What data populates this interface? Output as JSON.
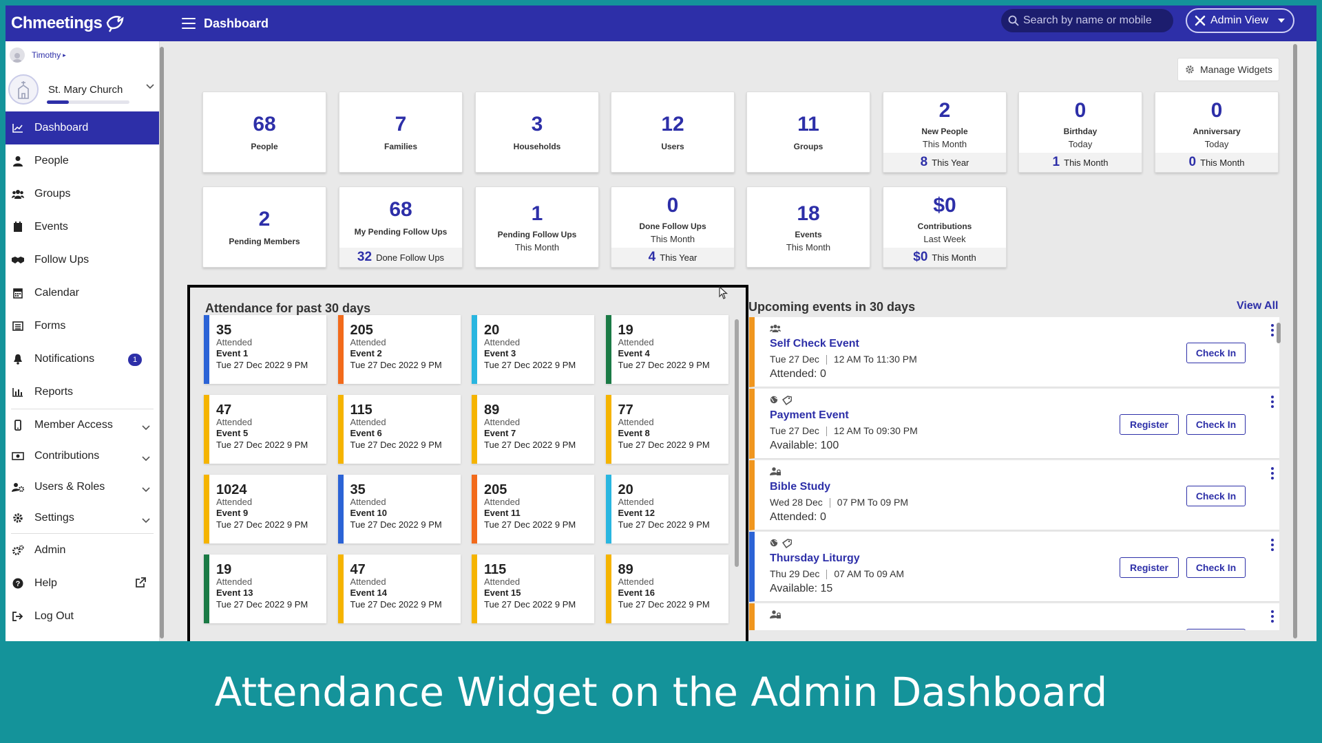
{
  "app": {
    "logo_text": "Chmeetings",
    "page_title": "Dashboard"
  },
  "search": {
    "placeholder": "Search by name or mobile"
  },
  "admin_view_label": "Admin View",
  "user_name": "Timothy",
  "church_name": "St. Mary Church",
  "sidebar": {
    "items": [
      {
        "label": "Dashboard",
        "icon": "chart-icon"
      },
      {
        "label": "People",
        "icon": "person-icon"
      },
      {
        "label": "Groups",
        "icon": "groups-icon"
      },
      {
        "label": "Events",
        "icon": "calendar-page-icon"
      },
      {
        "label": "Follow Ups",
        "icon": "handshake-icon"
      },
      {
        "label": "Calendar",
        "icon": "calendar-icon"
      },
      {
        "label": "Forms",
        "icon": "forms-icon"
      },
      {
        "label": "Notifications",
        "icon": "bell-icon",
        "badge": "1"
      },
      {
        "label": "Reports",
        "icon": "bar-chart-icon"
      },
      {
        "label": "Member Access",
        "icon": "mobile-icon"
      },
      {
        "label": "Contributions",
        "icon": "money-icon"
      },
      {
        "label": "Users & Roles",
        "icon": "users-cog-icon"
      },
      {
        "label": "Settings",
        "icon": "gear-icon"
      },
      {
        "label": "Admin",
        "icon": "cogs-icon"
      },
      {
        "label": "Help",
        "icon": "help-icon"
      },
      {
        "label": "Log Out",
        "icon": "logout-icon"
      }
    ]
  },
  "manage_widgets_label": "Manage Widgets",
  "stats_row1": [
    {
      "value": "68",
      "label": "People"
    },
    {
      "value": "7",
      "label": "Families"
    },
    {
      "value": "3",
      "label": "Households"
    },
    {
      "value": "12",
      "label": "Users"
    },
    {
      "value": "11",
      "label": "Groups"
    },
    {
      "value": "2",
      "label": "New People",
      "sub": "This Month",
      "foot_value": "8",
      "foot_label": "This Year"
    },
    {
      "value": "0",
      "label": "Birthday",
      "sub": "Today",
      "foot_value": "1",
      "foot_label": "This Month"
    },
    {
      "value": "0",
      "label": "Anniversary",
      "sub": "Today",
      "foot_value": "0",
      "foot_label": "This Month"
    }
  ],
  "stats_row2": [
    {
      "value": "2",
      "label": "Pending Members"
    },
    {
      "value": "68",
      "label": "My Pending Follow Ups",
      "foot_value": "32",
      "foot_label": "Done Follow Ups"
    },
    {
      "value": "1",
      "label": "Pending Follow Ups",
      "sub": "This Month"
    },
    {
      "value": "0",
      "label": "Done Follow Ups",
      "sub": "This Month",
      "foot_value": "4",
      "foot_label": "This Year"
    },
    {
      "value": "18",
      "label": "Events",
      "sub": "This Month"
    },
    {
      "value": "$0",
      "label": "Contributions",
      "sub": "Last Week",
      "foot_value": "$0",
      "foot_label": "This Month"
    }
  ],
  "attendance": {
    "title": "Attendance for past 30 days",
    "attended_label": "Attended",
    "cards": [
      {
        "count": "35",
        "event": "Event 1",
        "date": "Tue 27 Dec 2022 9 PM",
        "color": "#2b63d6"
      },
      {
        "count": "205",
        "event": "Event 2",
        "date": "Tue 27 Dec 2022 9 PM",
        "color": "#f26a1b"
      },
      {
        "count": "20",
        "event": "Event 3",
        "date": "Tue 27 Dec 2022 9 PM",
        "color": "#29b6e0"
      },
      {
        "count": "19",
        "event": "Event 4",
        "date": "Tue 27 Dec 2022 9 PM",
        "color": "#1a7a45"
      },
      {
        "count": "47",
        "event": "Event 5",
        "date": "Tue 27 Dec 2022 9 PM",
        "color": "#f5b400"
      },
      {
        "count": "115",
        "event": "Event 6",
        "date": "Tue 27 Dec 2022 9 PM",
        "color": "#f5b400"
      },
      {
        "count": "89",
        "event": "Event 7",
        "date": "Tue 27 Dec 2022 9 PM",
        "color": "#f5b400"
      },
      {
        "count": "77",
        "event": "Event 8",
        "date": "Tue 27 Dec 2022 9 PM",
        "color": "#f5b400"
      },
      {
        "count": "1024",
        "event": "Event 9",
        "date": "Tue 27 Dec 2022 9 PM",
        "color": "#f5b400"
      },
      {
        "count": "35",
        "event": "Event 10",
        "date": "Tue 27 Dec 2022 9 PM",
        "color": "#2b63d6"
      },
      {
        "count": "205",
        "event": "Event 11",
        "date": "Tue 27 Dec 2022 9 PM",
        "color": "#f26a1b"
      },
      {
        "count": "20",
        "event": "Event 12",
        "date": "Tue 27 Dec 2022 9 PM",
        "color": "#29b6e0"
      },
      {
        "count": "19",
        "event": "Event 13",
        "date": "Tue 27 Dec 2022 9 PM",
        "color": "#1a7a45"
      },
      {
        "count": "47",
        "event": "Event 14",
        "date": "Tue 27 Dec 2022 9 PM",
        "color": "#f5b400"
      },
      {
        "count": "115",
        "event": "Event 15",
        "date": "Tue 27 Dec 2022 9 PM",
        "color": "#f5b400"
      },
      {
        "count": "89",
        "event": "Event 16",
        "date": "Tue 27 Dec 2022 9 PM",
        "color": "#f5b400"
      }
    ]
  },
  "upcoming": {
    "title": "Upcoming events in 30 days",
    "view_all": "View All",
    "register_label": "Register",
    "checkin_label": "Check In",
    "events": [
      {
        "name": "Self Check Event",
        "date": "Tue 27 Dec",
        "time": "12 AM To 11:30 PM",
        "info": "Attended: 0",
        "register": false,
        "icons": [
          "group-icon"
        ],
        "color": "#f0961e"
      },
      {
        "name": "Payment Event",
        "date": "Tue 27 Dec",
        "time": "12 AM To 09:30 PM",
        "info": "Available: 100",
        "register": true,
        "icons": [
          "globe-icon",
          "tag-icon"
        ],
        "color": "#f0961e"
      },
      {
        "name": "Bible Study",
        "date": "Wed 28 Dec",
        "time": "07 PM To 09 PM",
        "info": "Attended: 0",
        "register": false,
        "icons": [
          "person-lock-icon"
        ],
        "color": "#f0961e"
      },
      {
        "name": "Thursday Liturgy",
        "date": "Thu 29 Dec",
        "time": "07 AM To 09 AM",
        "info": "Available: 15",
        "register": true,
        "icons": [
          "globe-icon",
          "tag-icon"
        ],
        "color": "#2b63d6"
      },
      {
        "name": "",
        "date": "",
        "time": "",
        "info": "",
        "register": false,
        "icons": [
          "person-lock-icon"
        ],
        "color": "#f0961e"
      }
    ]
  },
  "caption": "Attendance Widget on the Admin Dashboard",
  "colors": {
    "brand": "#2d2fa8",
    "background": "#14939a"
  }
}
